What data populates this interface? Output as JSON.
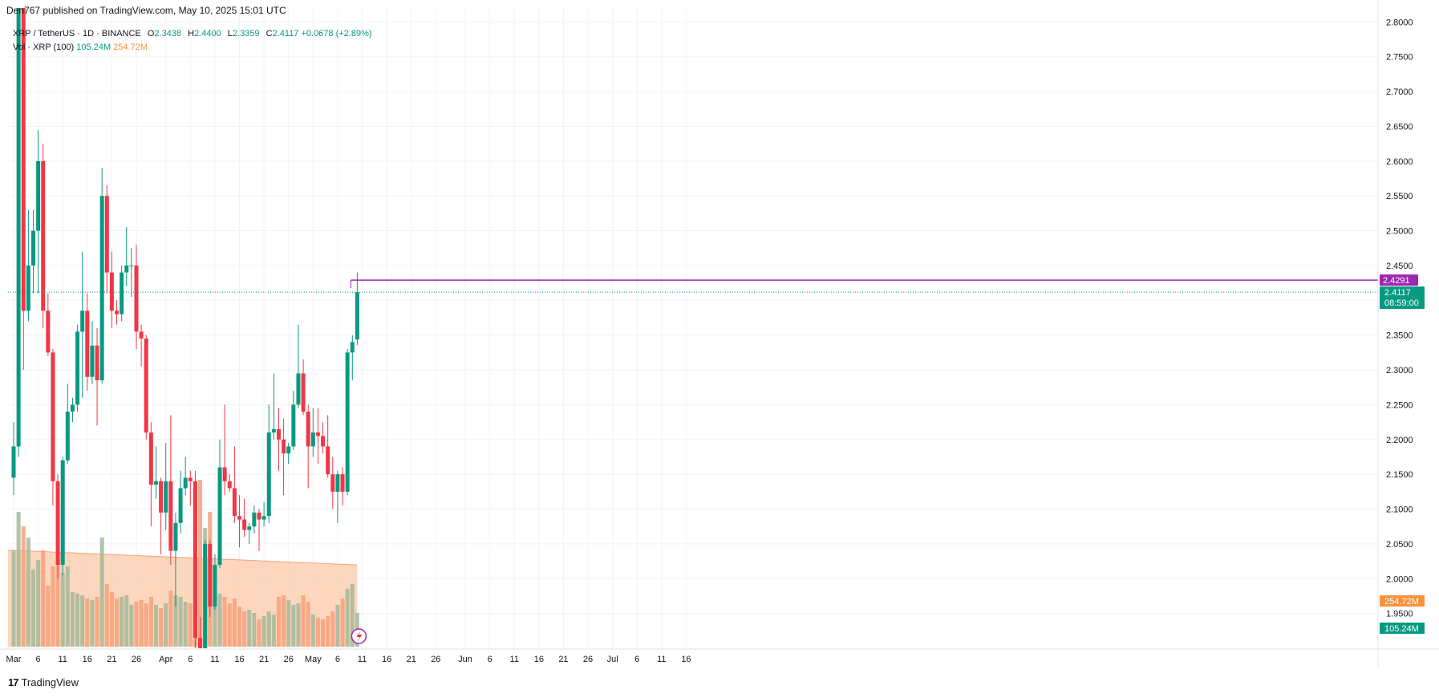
{
  "header": {
    "publisher_line": "Den767 published on TradingView.com, May 10, 2025 15:01 UTC"
  },
  "legend": {
    "symbol": "XRP / TetherUS · 1D · BINANCE",
    "open_label": "O",
    "open": "2.3438",
    "high_label": "H",
    "high": "2.4400",
    "low_label": "L",
    "low": "2.3359",
    "close_label": "C",
    "close": "2.4117",
    "change": "+0.0678 (+2.89%)",
    "vol_label": "Vol · XRP (100)",
    "vol_value": "105.24M",
    "vol_ma": "254.72M"
  },
  "footer": {
    "brand": "TradingView",
    "logo_glyph": "17"
  },
  "colors": {
    "up": "#089981",
    "down": "#f23645",
    "up_volume": "#a6b89a",
    "down_volume": "#f7a07a",
    "volume_ma_fill": "#fbc9a8",
    "volume_ma_line": "#f7a07a",
    "hline": "#9c27b0",
    "grid": "#f0f3fa",
    "price_tag_purple": "#9c27b0",
    "price_tag_green": "#089981",
    "vol_ma_tag": "#f7933e"
  },
  "chart_data": {
    "type": "candlestick",
    "price_axis": {
      "ticks": [
        "2.8000",
        "2.7500",
        "2.7000",
        "2.6500",
        "2.6000",
        "2.5500",
        "2.5000",
        "2.4500",
        "2.4000",
        "2.3500",
        "2.3000",
        "2.2500",
        "2.2000",
        "2.1500",
        "2.1000",
        "2.0500",
        "2.0000",
        "1.9500"
      ],
      "range": [
        1.9,
        2.82
      ]
    },
    "time_axis": {
      "ticks": [
        {
          "label": "Mar",
          "day": 0
        },
        {
          "label": "6",
          "day": 5
        },
        {
          "label": "11",
          "day": 10
        },
        {
          "label": "16",
          "day": 15
        },
        {
          "label": "21",
          "day": 20
        },
        {
          "label": "26",
          "day": 25
        },
        {
          "label": "Apr",
          "day": 31
        },
        {
          "label": "6",
          "day": 36
        },
        {
          "label": "11",
          "day": 41
        },
        {
          "label": "16",
          "day": 46
        },
        {
          "label": "21",
          "day": 51
        },
        {
          "label": "26",
          "day": 56
        },
        {
          "label": "May",
          "day": 61
        },
        {
          "label": "6",
          "day": 66
        },
        {
          "label": "11",
          "day": 71
        },
        {
          "label": "16",
          "day": 76
        },
        {
          "label": "21",
          "day": 81
        },
        {
          "label": "26",
          "day": 86
        },
        {
          "label": "Jun",
          "day": 92
        },
        {
          "label": "6",
          "day": 97
        },
        {
          "label": "11",
          "day": 102
        },
        {
          "label": "16",
          "day": 107
        },
        {
          "label": "21",
          "day": 112
        },
        {
          "label": "26",
          "day": 117
        },
        {
          "label": "Jul",
          "day": 122
        },
        {
          "label": "6",
          "day": 127
        },
        {
          "label": "11",
          "day": 132
        },
        {
          "label": "16",
          "day": 137
        }
      ]
    },
    "candles": [
      {
        "o": 2.145,
        "h": 2.225,
        "l": 2.12,
        "c": 2.19
      },
      {
        "o": 2.19,
        "h": 2.95,
        "l": 2.175,
        "c": 2.9
      },
      {
        "o": 2.9,
        "h": 2.96,
        "l": 2.3,
        "c": 2.385
      },
      {
        "o": 2.385,
        "h": 2.53,
        "l": 2.37,
        "c": 2.45
      },
      {
        "o": 2.45,
        "h": 2.53,
        "l": 2.41,
        "c": 2.5
      },
      {
        "o": 2.5,
        "h": 2.645,
        "l": 2.41,
        "c": 2.6
      },
      {
        "o": 2.6,
        "h": 2.625,
        "l": 2.36,
        "c": 2.385
      },
      {
        "o": 2.385,
        "h": 2.41,
        "l": 2.32,
        "c": 2.325
      },
      {
        "o": 2.325,
        "h": 2.33,
        "l": 2.105,
        "c": 2.14
      },
      {
        "o": 2.14,
        "h": 2.15,
        "l": 2.0,
        "c": 2.02
      },
      {
        "o": 2.02,
        "h": 2.175,
        "l": 2.005,
        "c": 2.17
      },
      {
        "o": 2.17,
        "h": 2.28,
        "l": 2.165,
        "c": 2.24
      },
      {
        "o": 2.24,
        "h": 2.26,
        "l": 2.225,
        "c": 2.25
      },
      {
        "o": 2.25,
        "h": 2.365,
        "l": 2.24,
        "c": 2.355
      },
      {
        "o": 2.355,
        "h": 2.47,
        "l": 2.26,
        "c": 2.385
      },
      {
        "o": 2.385,
        "h": 2.41,
        "l": 2.27,
        "c": 2.29
      },
      {
        "o": 2.29,
        "h": 2.37,
        "l": 2.28,
        "c": 2.335
      },
      {
        "o": 2.335,
        "h": 2.36,
        "l": 2.22,
        "c": 2.285
      },
      {
        "o": 2.285,
        "h": 2.59,
        "l": 2.28,
        "c": 2.55
      },
      {
        "o": 2.55,
        "h": 2.565,
        "l": 2.41,
        "c": 2.44
      },
      {
        "o": 2.44,
        "h": 2.47,
        "l": 2.36,
        "c": 2.385
      },
      {
        "o": 2.385,
        "h": 2.4,
        "l": 2.365,
        "c": 2.38
      },
      {
        "o": 2.38,
        "h": 2.45,
        "l": 2.37,
        "c": 2.44
      },
      {
        "o": 2.44,
        "h": 2.505,
        "l": 2.42,
        "c": 2.45
      },
      {
        "o": 2.45,
        "h": 2.475,
        "l": 2.405,
        "c": 2.45
      },
      {
        "o": 2.45,
        "h": 2.48,
        "l": 2.33,
        "c": 2.355
      },
      {
        "o": 2.355,
        "h": 2.365,
        "l": 2.305,
        "c": 2.345
      },
      {
        "o": 2.345,
        "h": 2.35,
        "l": 2.2,
        "c": 2.21
      },
      {
        "o": 2.21,
        "h": 2.225,
        "l": 2.075,
        "c": 2.135
      },
      {
        "o": 2.135,
        "h": 2.19,
        "l": 2.115,
        "c": 2.14
      },
      {
        "o": 2.14,
        "h": 2.145,
        "l": 2.035,
        "c": 2.095
      },
      {
        "o": 2.095,
        "h": 2.195,
        "l": 2.07,
        "c": 2.14
      },
      {
        "o": 2.14,
        "h": 2.235,
        "l": 2.02,
        "c": 2.04
      },
      {
        "o": 2.04,
        "h": 2.095,
        "l": 1.96,
        "c": 2.08
      },
      {
        "o": 2.08,
        "h": 2.155,
        "l": 2.065,
        "c": 2.13
      },
      {
        "o": 2.13,
        "h": 2.175,
        "l": 2.12,
        "c": 2.145
      },
      {
        "o": 2.145,
        "h": 2.155,
        "l": 2.105,
        "c": 2.14
      },
      {
        "o": 2.14,
        "h": 2.155,
        "l": 1.9,
        "c": 1.915
      },
      {
        "o": 1.915,
        "h": 1.945,
        "l": 1.79,
        "c": 1.845
      },
      {
        "o": 1.845,
        "h": 2.055,
        "l": 1.84,
        "c": 2.05
      },
      {
        "o": 2.05,
        "h": 2.055,
        "l": 1.945,
        "c": 1.96
      },
      {
        "o": 1.96,
        "h": 2.035,
        "l": 1.955,
        "c": 2.02
      },
      {
        "o": 2.02,
        "h": 2.2,
        "l": 2.015,
        "c": 2.16
      },
      {
        "o": 2.16,
        "h": 2.25,
        "l": 2.12,
        "c": 2.14
      },
      {
        "o": 2.14,
        "h": 2.15,
        "l": 2.125,
        "c": 2.13
      },
      {
        "o": 2.13,
        "h": 2.19,
        "l": 2.08,
        "c": 2.09
      },
      {
        "o": 2.09,
        "h": 2.12,
        "l": 2.045,
        "c": 2.085
      },
      {
        "o": 2.085,
        "h": 2.115,
        "l": 2.06,
        "c": 2.07
      },
      {
        "o": 2.07,
        "h": 2.08,
        "l": 2.05,
        "c": 2.075
      },
      {
        "o": 2.075,
        "h": 2.105,
        "l": 2.065,
        "c": 2.095
      },
      {
        "o": 2.095,
        "h": 2.1,
        "l": 2.04,
        "c": 2.085
      },
      {
        "o": 2.085,
        "h": 2.11,
        "l": 2.075,
        "c": 2.09
      },
      {
        "o": 2.09,
        "h": 2.25,
        "l": 2.08,
        "c": 2.21
      },
      {
        "o": 2.21,
        "h": 2.295,
        "l": 2.2,
        "c": 2.215
      },
      {
        "o": 2.215,
        "h": 2.245,
        "l": 2.155,
        "c": 2.2
      },
      {
        "o": 2.2,
        "h": 2.23,
        "l": 2.12,
        "c": 2.18
      },
      {
        "o": 2.18,
        "h": 2.195,
        "l": 2.165,
        "c": 2.19
      },
      {
        "o": 2.19,
        "h": 2.27,
        "l": 2.185,
        "c": 2.25
      },
      {
        "o": 2.25,
        "h": 2.365,
        "l": 2.245,
        "c": 2.295
      },
      {
        "o": 2.295,
        "h": 2.315,
        "l": 2.235,
        "c": 2.24
      },
      {
        "o": 2.24,
        "h": 2.25,
        "l": 2.13,
        "c": 2.19
      },
      {
        "o": 2.19,
        "h": 2.245,
        "l": 2.175,
        "c": 2.21
      },
      {
        "o": 2.21,
        "h": 2.245,
        "l": 2.165,
        "c": 2.205
      },
      {
        "o": 2.205,
        "h": 2.225,
        "l": 2.18,
        "c": 2.19
      },
      {
        "o": 2.19,
        "h": 2.235,
        "l": 2.145,
        "c": 2.15
      },
      {
        "o": 2.15,
        "h": 2.175,
        "l": 2.1,
        "c": 2.125
      },
      {
        "o": 2.125,
        "h": 2.155,
        "l": 2.08,
        "c": 2.15
      },
      {
        "o": 2.15,
        "h": 2.16,
        "l": 2.105,
        "c": 2.125
      },
      {
        "o": 2.125,
        "h": 2.33,
        "l": 2.12,
        "c": 2.325
      },
      {
        "o": 2.325,
        "h": 2.35,
        "l": 2.285,
        "c": 2.34
      },
      {
        "o": 2.3438,
        "h": 2.44,
        "l": 2.3359,
        "c": 2.4117
      }
    ],
    "volumes_M": [
      300,
      420,
      375,
      340,
      240,
      270,
      300,
      190,
      250,
      410,
      230,
      250,
      170,
      165,
      160,
      150,
      145,
      155,
      340,
      195,
      170,
      150,
      155,
      160,
      130,
      140,
      145,
      135,
      155,
      130,
      120,
      135,
      175,
      160,
      155,
      140,
      135,
      130,
      520,
      370,
      420,
      230,
      165,
      155,
      135,
      150,
      125,
      110,
      115,
      105,
      85,
      95,
      110,
      100,
      155,
      160,
      145,
      130,
      135,
      160,
      140,
      100,
      90,
      85,
      95,
      110,
      130,
      150,
      180,
      195,
      105.24
    ],
    "volume_ma": {
      "name": "Vol · XRP (100)",
      "last": 254.72
    },
    "horizontal_line": 2.4291,
    "last_price": 2.4117,
    "last_price_countdown": "08:59:00"
  }
}
